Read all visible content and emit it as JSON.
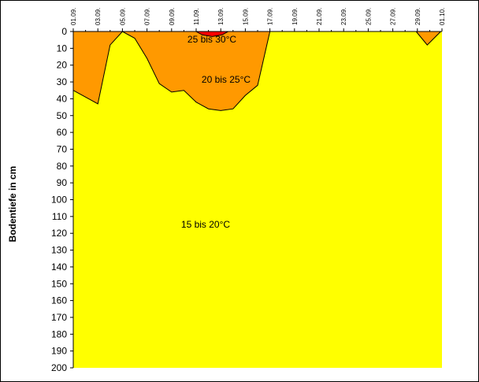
{
  "chart_data": {
    "type": "area",
    "title": "",
    "xlabel": "",
    "ylabel": "Bodentiefe in cm",
    "x_ticks": [
      "01.09.",
      "03.09.",
      "05.09.",
      "07.09.",
      "09.09.",
      "11.09.",
      "13.09.",
      "15.09.",
      "17.09.",
      "19.09.",
      "21.09.",
      "23.09.",
      "25.09.",
      "27.09.",
      "29.09.",
      "01.10."
    ],
    "xlim_days": [
      0,
      30
    ],
    "ylim": [
      0,
      200
    ],
    "y_ticks": [
      0,
      10,
      20,
      30,
      40,
      50,
      60,
      70,
      80,
      90,
      100,
      110,
      120,
      130,
      140,
      150,
      160,
      170,
      180,
      190,
      200
    ],
    "y_inverted": true,
    "grid": false,
    "zones": [
      {
        "name": "15 bis 20°C",
        "color": "#FFFF00",
        "label": "15 bis 20°C"
      },
      {
        "name": "20 bis 25°C",
        "color": "#FF9900",
        "label": "20 bis 25°C",
        "boundaries": [
          {
            "points": [
              {
                "day": 0,
                "depth": 35
              },
              {
                "day": 2,
                "depth": 43
              },
              {
                "day": 3,
                "depth": 8
              },
              {
                "day": 4,
                "depth": 0
              },
              {
                "day": 5,
                "depth": 4
              },
              {
                "day": 6,
                "depth": 16
              },
              {
                "day": 7,
                "depth": 31
              },
              {
                "day": 8,
                "depth": 36
              },
              {
                "day": 9,
                "depth": 35
              },
              {
                "day": 10,
                "depth": 42
              },
              {
                "day": 11,
                "depth": 46
              },
              {
                "day": 12,
                "depth": 47
              },
              {
                "day": 13,
                "depth": 46
              },
              {
                "day": 14,
                "depth": 38
              },
              {
                "day": 15,
                "depth": 32
              },
              {
                "day": 16,
                "depth": 0
              }
            ]
          },
          {
            "points": [
              {
                "day": 27.9,
                "depth": 0
              },
              {
                "day": 28.8,
                "depth": 8
              },
              {
                "day": 29.9,
                "depth": 0
              }
            ]
          }
        ]
      },
      {
        "name": "25 bis 30°C",
        "color": "#FF0000",
        "label": "25 bis 30°C",
        "boundaries": [
          {
            "points": [
              {
                "day": 10,
                "depth": 0
              },
              {
                "day": 10.5,
                "depth": 2
              },
              {
                "day": 11.3,
                "depth": 3
              },
              {
                "day": 12.1,
                "depth": 2
              },
              {
                "day": 12.6,
                "depth": 0
              }
            ]
          }
        ]
      }
    ]
  }
}
